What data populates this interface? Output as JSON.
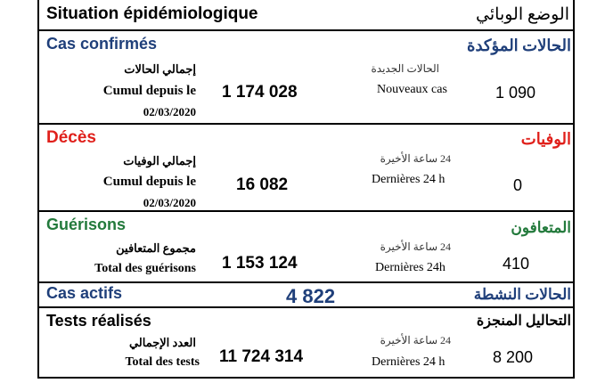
{
  "header": {
    "title_fr": "Situation épidémiologique",
    "title_ar": "الوضع الوبائي"
  },
  "confirmed": {
    "title_fr": "Cas confirmés",
    "title_ar": "الحالات المؤكدة",
    "total_ar": "إجمالي الحالات",
    "total_fr_1": "Cumul depuis le",
    "total_date": "02/03/2020",
    "total_value": "1 174 028",
    "new_ar": "الحالات الجديدة",
    "new_fr": "Nouveaux cas",
    "new_value": "1 090",
    "color": "#1f3f7a"
  },
  "deaths": {
    "title_fr": "Décès",
    "title_ar": "الوفيات",
    "total_ar": "إجمالي الوفيات",
    "total_fr_1": "Cumul depuis le",
    "total_date": "02/03/2020",
    "total_value": "16 082",
    "new_ar": "24 ساعة الأخيرة",
    "new_fr": "Dernières 24 h",
    "new_value": "0",
    "color": "#e0201b"
  },
  "recoveries": {
    "title_fr": "Guérisons",
    "title_ar": "المتعافون",
    "total_ar": "مجموع المتعافين",
    "total_fr": "Total des guérisons",
    "total_value": "1 153 124",
    "new_ar": "24 ساعة الأخيرة",
    "new_fr": "Dernières 24h",
    "new_value": "410",
    "color": "#237a3c"
  },
  "active": {
    "title_fr": "Cas actifs",
    "title_ar": "الحالات النشطة",
    "value": "4 822",
    "color": "#1f3f7a"
  },
  "tests": {
    "title_fr": "Tests réalisés",
    "title_ar": "التحاليل المنجزة",
    "total_ar": "العدد الإجمالي",
    "total_fr": "Total des tests",
    "total_value": "11 724 314",
    "new_ar": "24 ساعة الأخيرة",
    "new_fr": "Dernières 24 h",
    "new_value": "8 200"
  }
}
